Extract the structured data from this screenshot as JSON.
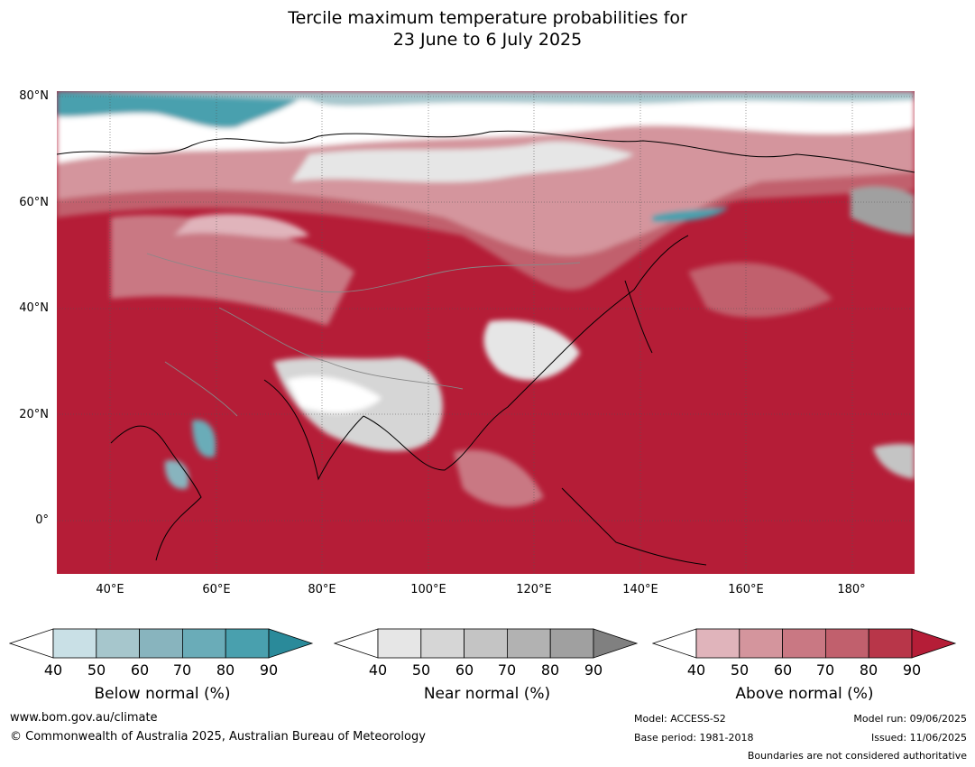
{
  "title": {
    "line1": "Tercile maximum temperature probabilities for",
    "line2": "23 June to 6 July 2025"
  },
  "map": {
    "lat_labels": [
      "80°N",
      "60°N",
      "40°N",
      "20°N",
      "0°"
    ],
    "lon_labels": [
      "40°E",
      "60°E",
      "80°E",
      "100°E",
      "120°E",
      "140°E",
      "160°E",
      "180°"
    ]
  },
  "colorbars": [
    {
      "id": "below",
      "title": "Below normal (%)",
      "ticks": [
        "40",
        "50",
        "60",
        "70",
        "80",
        "90"
      ],
      "colors": [
        "#ffffff",
        "#c9e0e6",
        "#a6c6cc",
        "#88b4be",
        "#6aacb8",
        "#49a0ae",
        "#2a8a9a"
      ]
    },
    {
      "id": "near",
      "title": "Near normal (%)",
      "ticks": [
        "40",
        "50",
        "60",
        "70",
        "80",
        "90"
      ],
      "colors": [
        "#ffffff",
        "#e6e6e6",
        "#d6d6d6",
        "#c4c4c4",
        "#b2b2b2",
        "#a0a0a0",
        "#808080"
      ]
    },
    {
      "id": "above",
      "title": "Above normal (%)",
      "ticks": [
        "40",
        "50",
        "60",
        "70",
        "80",
        "90"
      ],
      "colors": [
        "#ffffff",
        "#e0b4bb",
        "#d4959d",
        "#c97883",
        "#c1606d",
        "#b83649",
        "#b51d37"
      ]
    }
  ],
  "footer": {
    "website": "www.bom.gov.au/climate",
    "copyright": "© Commonwealth of Australia 2025, Australian Bureau of Meteorology",
    "model": "Model: ACCESS-S2",
    "base_period": "Base period: 1981-2018",
    "model_run": "Model run: 09/06/2025",
    "issued": "Issued: 11/06/2025",
    "disclaimer": "Boundaries are not considered authoritative"
  }
}
